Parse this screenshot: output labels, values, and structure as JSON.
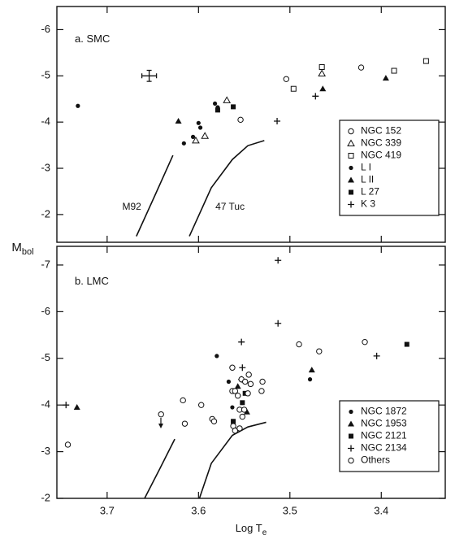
{
  "ylabel": {
    "text": "M",
    "subscript": "bol"
  },
  "chart_data": [
    {
      "type": "scatter",
      "panel_label": "a. SMC",
      "color": "#111111",
      "xlim": [
        3.755,
        3.33
      ],
      "ylim": [
        -1.4,
        -6.5
      ],
      "xticks": [
        3.7,
        3.6,
        3.5,
        3.4
      ],
      "yticks": [
        -2,
        -3,
        -4,
        -5,
        -6
      ],
      "legend": "lower right",
      "series": [
        {
          "name": "NGC 152",
          "marker": "open-circle",
          "x": [
            3.554,
            3.504,
            3.422
          ],
          "values": [
            -4.05,
            -4.93,
            -5.18
          ]
        },
        {
          "name": "NGC 339",
          "marker": "open-triangle",
          "x": [
            3.569,
            3.603,
            3.593,
            3.465
          ],
          "values": [
            -4.47,
            -3.6,
            -3.7,
            -5.05
          ]
        },
        {
          "name": "NGC 419",
          "marker": "open-square",
          "x": [
            3.496,
            3.465,
            3.386,
            3.351
          ],
          "values": [
            -4.72,
            -5.19,
            -5.11,
            -5.32
          ]
        },
        {
          "name": "L I",
          "marker": "filled-circle",
          "x": [
            3.732,
            3.582,
            3.579,
            3.606,
            3.616,
            3.6,
            3.598
          ],
          "values": [
            -4.35,
            -4.4,
            -4.32,
            -3.68,
            -3.54,
            -3.98,
            -3.88
          ]
        },
        {
          "name": "L II",
          "marker": "filled-triangle",
          "x": [
            3.622,
            3.464,
            3.395
          ],
          "values": [
            -4.02,
            -4.72,
            -4.95
          ]
        },
        {
          "name": "L 27",
          "marker": "filled-square",
          "x": [
            3.579,
            3.562
          ],
          "values": [
            -4.26,
            -4.33
          ]
        },
        {
          "name": "K 3",
          "marker": "plus",
          "x": [
            3.514,
            3.472
          ],
          "values": [
            -4.02,
            -4.56
          ]
        }
      ],
      "lines": [
        {
          "label": "M92",
          "x": [
            3.668,
            3.648,
            3.628
          ],
          "values": [
            -1.53,
            -2.4,
            -3.28
          ]
        },
        {
          "label": "47 Tuc",
          "x": [
            3.61,
            3.586,
            3.563,
            3.546,
            3.528
          ],
          "values": [
            -1.53,
            -2.58,
            -3.19,
            -3.49,
            -3.6
          ]
        }
      ],
      "error_bar": {
        "x": 3.654,
        "xerr": 0.008,
        "y": -5.0,
        "yerr": 0.12
      }
    },
    {
      "type": "scatter",
      "panel_label": "b. LMC",
      "color": "#111111",
      "xlim": [
        3.755,
        3.33
      ],
      "ylim": [
        -2,
        -7.4
      ],
      "xticks": [
        3.7,
        3.6,
        3.5,
        3.4
      ],
      "yticks": [
        -2,
        -3,
        -4,
        -5,
        -6,
        -7
      ],
      "xlabel": {
        "text": "Log T",
        "subscript": "e"
      },
      "legend": "lower right",
      "series": [
        {
          "name": "NGC 1872",
          "marker": "filled-circle",
          "x": [
            3.58,
            3.567,
            3.556,
            3.563,
            3.478
          ],
          "values": [
            -5.05,
            -4.5,
            -4.2,
            -3.95,
            -4.55
          ]
        },
        {
          "name": "NGC 1953",
          "marker": "filled-triangle",
          "x": [
            3.733,
            3.547,
            3.476,
            3.557
          ],
          "values": [
            -3.95,
            -3.85,
            -4.75,
            -4.4
          ]
        },
        {
          "name": "NGC 2121",
          "marker": "filled-square",
          "x": [
            3.549,
            3.552,
            3.562,
            3.372
          ],
          "values": [
            -4.25,
            -4.05,
            -3.65,
            -5.3
          ]
        },
        {
          "name": "NGC 2134",
          "marker": "plus",
          "x": [
            3.745,
            3.513,
            3.513,
            3.553,
            3.552,
            3.405,
            3.553
          ],
          "values": [
            -4.0,
            -7.1,
            -5.75,
            -5.35,
            -4.8,
            -5.05,
            -4.55
          ]
        },
        {
          "name": "Others",
          "marker": "open-circle",
          "x": [
            3.743,
            3.641,
            3.617,
            3.615,
            3.597,
            3.585,
            3.583,
            3.563,
            3.563,
            3.56,
            3.557,
            3.553,
            3.549,
            3.545,
            3.543,
            3.546,
            3.53,
            3.531,
            3.555,
            3.55,
            3.552,
            3.562,
            3.56,
            3.555,
            3.49,
            3.468,
            3.418
          ],
          "values": [
            -3.15,
            -3.8,
            -4.1,
            -3.6,
            -4.0,
            -3.7,
            -3.65,
            -4.8,
            -4.3,
            -4.3,
            -4.2,
            -4.55,
            -4.5,
            -4.65,
            -4.45,
            -4.25,
            -4.5,
            -4.3,
            -3.9,
            -3.9,
            -3.75,
            -3.55,
            -3.45,
            -3.5,
            -5.3,
            -5.15,
            -5.35
          ]
        }
      ],
      "lines": [
        {
          "x": [
            3.659,
            3.643,
            3.626
          ],
          "values": [
            -2.0,
            -2.61,
            -3.27
          ]
        },
        {
          "x": [
            3.599,
            3.586,
            3.563,
            3.546,
            3.526
          ],
          "values": [
            -2.0,
            -2.75,
            -3.35,
            -3.53,
            -3.63
          ]
        }
      ]
    }
  ]
}
